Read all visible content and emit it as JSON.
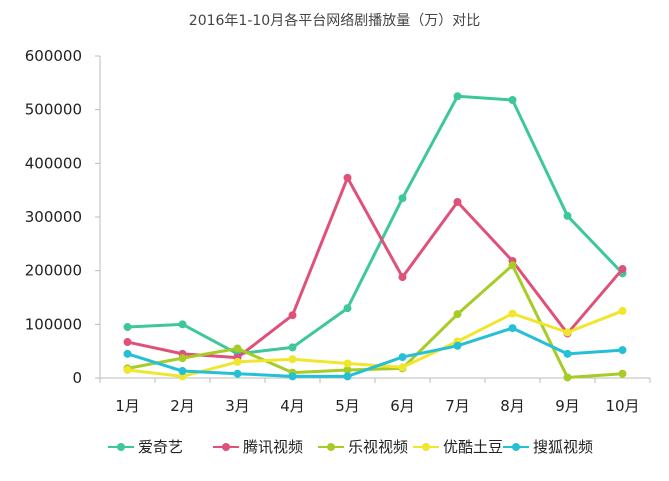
{
  "chart_data": {
    "type": "line",
    "title": "2016年1-10月各平台网络剧播放量（万）对比",
    "xlabel": "",
    "ylabel": "",
    "categories": [
      "1月",
      "2月",
      "3月",
      "4月",
      "5月",
      "6月",
      "7月",
      "8月",
      "9月",
      "10月"
    ],
    "ylim": [
      0,
      600000
    ],
    "yticks": [
      0,
      100000,
      200000,
      300000,
      400000,
      500000,
      600000
    ],
    "grid": false,
    "legend_position": "bottom",
    "series": [
      {
        "name": "爱奇艺",
        "color": "#3dc79a",
        "values": [
          95000,
          100000,
          45000,
          57000,
          130000,
          335000,
          525000,
          518000,
          302000,
          195000
        ]
      },
      {
        "name": "腾讯视频",
        "color": "#e0517a",
        "values": [
          67000,
          45000,
          38000,
          117000,
          373000,
          188000,
          328000,
          218000,
          83000,
          203000
        ]
      },
      {
        "name": "乐视视频",
        "color": "#a6cc25",
        "values": [
          18000,
          37000,
          55000,
          10000,
          15000,
          18000,
          119000,
          210000,
          1000,
          8000
        ]
      },
      {
        "name": "优酷土豆",
        "color": "#f0e62e",
        "values": [
          15000,
          3000,
          30000,
          35000,
          27000,
          20000,
          68000,
          120000,
          85000,
          125000
        ]
      },
      {
        "name": "搜狐视频",
        "color": "#25bfd6",
        "values": [
          45000,
          13000,
          8000,
          3000,
          3000,
          39000,
          60000,
          93000,
          45000,
          52000
        ]
      }
    ]
  }
}
